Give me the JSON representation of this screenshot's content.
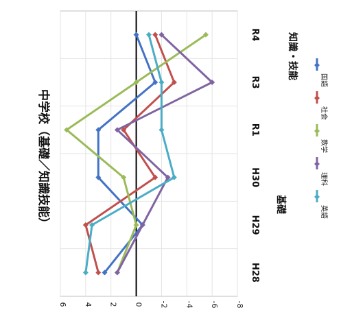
{
  "chart_data": {
    "type": "line",
    "title": "中学校（基礎／知識技能）",
    "categories": [
      "H28",
      "H29",
      "H30",
      "R1",
      "R3",
      "R4"
    ],
    "value_axis": {
      "range": [
        -8,
        6
      ],
      "ticks": [
        -8,
        -6,
        -4,
        -2,
        0,
        2,
        4,
        6
      ]
    },
    "section_labels": [
      "基礎",
      "知識・技能"
    ],
    "grid": true,
    "legend_position": "right",
    "series": [
      {
        "name": "国語",
        "color": "#4472C4",
        "values": [
          2.5,
          -0.5,
          3,
          3,
          -1.5,
          0
        ]
      },
      {
        "name": "社会",
        "color": "#C0504D",
        "values": [
          3,
          4,
          -1.5,
          1,
          -3,
          -1.5
        ]
      },
      {
        "name": "数学",
        "color": "#9BBB59",
        "values": [
          1.5,
          0,
          1,
          5.5,
          0,
          -5.5
        ]
      },
      {
        "name": "理科",
        "color": "#8064A2",
        "values": [
          1.5,
          -0.5,
          -2.5,
          1.5,
          -6,
          -2
        ]
      },
      {
        "name": "英語",
        "color": "#4BACC6",
        "values": [
          4,
          3.5,
          -3,
          -2,
          -2,
          -1
        ]
      }
    ]
  }
}
